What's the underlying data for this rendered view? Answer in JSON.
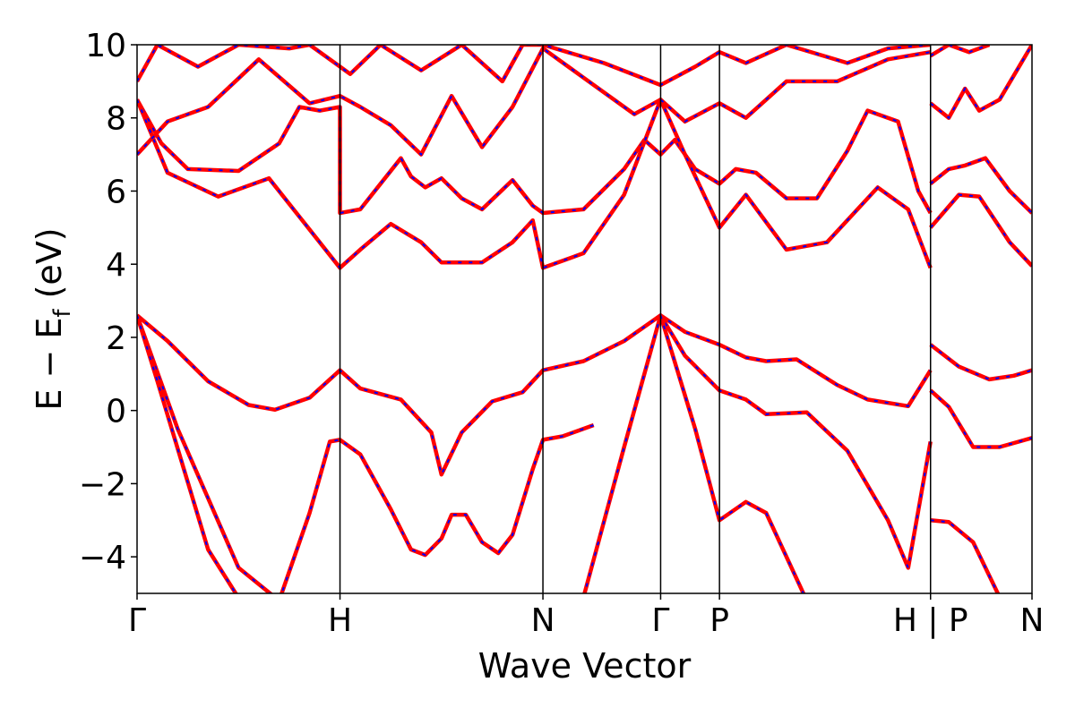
{
  "chart_data": {
    "type": "line",
    "title": "",
    "xlabel": "Wave Vector",
    "ylabel": "E − E",
    "ylabel_sub": "f",
    "ylabel_unit": " (eV)",
    "ylim": [
      -5,
      10
    ],
    "yticks": [
      -4,
      -2,
      0,
      2,
      4,
      6,
      8,
      10
    ],
    "ytick_labels": [
      "−4",
      "−2",
      "0",
      "2",
      "4",
      "6",
      "8",
      "10"
    ],
    "grid": false,
    "x_segments": [
      0,
      1.0,
      2.0,
      2.58,
      2.87,
      3.91,
      4.41
    ],
    "kpoint_labels": [
      {
        "x": 0,
        "label": "Γ"
      },
      {
        "x": 1.0,
        "label": "H"
      },
      {
        "x": 2.0,
        "label": "N"
      },
      {
        "x": 2.58,
        "label": "Γ"
      },
      {
        "x": 2.87,
        "label": "P"
      },
      {
        "x": 3.91,
        "label": "H | P"
      },
      {
        "x": 4.41,
        "label": "N"
      }
    ],
    "series_colors": {
      "reference": "#ff0000",
      "overlay": "#0000ff"
    },
    "series": [
      {
        "values": [
          [
            0,
            2.6
          ],
          [
            0.15,
            1.9
          ],
          [
            0.35,
            0.8
          ],
          [
            0.55,
            0.15
          ],
          [
            0.68,
            0.02
          ],
          [
            0.85,
            0.35
          ],
          [
            1.0,
            1.1
          ],
          [
            1.1,
            0.6
          ],
          [
            1.3,
            0.3
          ],
          [
            1.45,
            -0.6
          ],
          [
            1.5,
            -1.75
          ],
          [
            1.6,
            -0.6
          ],
          [
            1.75,
            0.25
          ],
          [
            1.9,
            0.5
          ],
          [
            2.0,
            1.1
          ],
          [
            2.2,
            1.35
          ],
          [
            2.4,
            1.9
          ],
          [
            2.58,
            2.6
          ],
          [
            2.7,
            2.15
          ],
          [
            2.87,
            1.8
          ],
          [
            3.0,
            1.45
          ],
          [
            3.1,
            1.35
          ],
          [
            3.25,
            1.4
          ],
          [
            3.45,
            0.7
          ],
          [
            3.6,
            0.3
          ],
          [
            3.8,
            0.12
          ],
          [
            3.91,
            1.1
          ]
        ]
      },
      {
        "values": [
          [
            0,
            2.6
          ],
          [
            0.2,
            -0.5
          ],
          [
            0.5,
            -4.3
          ],
          [
            0.7,
            -5.2
          ]
        ]
      },
      {
        "values": [
          [
            0,
            2.6
          ],
          [
            0.1,
            0.8
          ],
          [
            0.35,
            -3.8
          ],
          [
            0.6,
            -6.0
          ]
        ]
      },
      {
        "values": [
          [
            0.7,
            -5.2
          ],
          [
            0.85,
            -2.8
          ],
          [
            0.95,
            -0.85
          ],
          [
            1.0,
            -0.8
          ],
          [
            1.1,
            -1.2
          ],
          [
            1.25,
            -2.7
          ],
          [
            1.35,
            -3.8
          ],
          [
            1.42,
            -3.95
          ],
          [
            1.5,
            -3.5
          ],
          [
            1.55,
            -2.85
          ],
          [
            1.62,
            -2.85
          ],
          [
            1.7,
            -3.6
          ],
          [
            1.78,
            -3.9
          ],
          [
            1.85,
            -3.4
          ],
          [
            1.95,
            -1.6
          ],
          [
            2.0,
            -0.8
          ],
          [
            2.1,
            -0.7
          ],
          [
            2.25,
            -0.4
          ]
        ]
      },
      {
        "values": [
          [
            2.2,
            -5.1
          ],
          [
            2.4,
            -1.0
          ],
          [
            2.58,
            2.6
          ],
          [
            2.7,
            1.5
          ],
          [
            2.87,
            0.55
          ],
          [
            3.0,
            0.3
          ],
          [
            3.1,
            -0.1
          ],
          [
            3.3,
            -0.05
          ],
          [
            3.5,
            -1.1
          ],
          [
            3.7,
            -3.0
          ],
          [
            3.8,
            -4.3
          ],
          [
            3.91,
            -0.85
          ]
        ]
      },
      {
        "values": [
          [
            2.58,
            2.6
          ],
          [
            2.75,
            -0.5
          ],
          [
            2.87,
            -3.0
          ],
          [
            3.0,
            -2.5
          ],
          [
            3.1,
            -2.8
          ],
          [
            3.3,
            -5.2
          ]
        ]
      },
      {
        "values": [
          [
            0,
            8.5
          ],
          [
            0.12,
            7.3
          ],
          [
            0.25,
            6.6
          ],
          [
            0.5,
            6.55
          ],
          [
            0.7,
            7.3
          ],
          [
            0.8,
            8.3
          ],
          [
            0.9,
            8.2
          ],
          [
            1.0,
            8.3
          ],
          [
            1.0,
            5.4
          ],
          [
            1.1,
            5.5
          ],
          [
            1.2,
            6.2
          ],
          [
            1.3,
            6.9
          ],
          [
            1.35,
            6.4
          ],
          [
            1.42,
            6.1
          ],
          [
            1.5,
            6.35
          ],
          [
            1.6,
            5.8
          ],
          [
            1.7,
            5.5
          ],
          [
            1.85,
            6.3
          ],
          [
            1.95,
            5.6
          ],
          [
            2.0,
            5.4
          ],
          [
            2.2,
            5.5
          ],
          [
            2.4,
            6.6
          ],
          [
            2.5,
            7.4
          ],
          [
            2.58,
            7.0
          ],
          [
            2.65,
            7.4
          ],
          [
            2.75,
            6.6
          ],
          [
            2.87,
            6.2
          ],
          [
            2.95,
            6.6
          ],
          [
            3.05,
            6.5
          ],
          [
            3.2,
            5.8
          ],
          [
            3.35,
            5.8
          ],
          [
            3.5,
            7.1
          ],
          [
            3.6,
            8.2
          ],
          [
            3.75,
            7.9
          ],
          [
            3.85,
            6.0
          ],
          [
            3.91,
            5.4
          ]
        ]
      },
      {
        "values": [
          [
            0,
            8.5
          ],
          [
            0.15,
            6.5
          ],
          [
            0.4,
            5.85
          ],
          [
            0.65,
            6.35
          ],
          [
            0.8,
            5.3
          ],
          [
            1.0,
            3.9
          ],
          [
            1.1,
            4.4
          ],
          [
            1.25,
            5.1
          ],
          [
            1.4,
            4.6
          ],
          [
            1.5,
            4.05
          ],
          [
            1.7,
            4.05
          ],
          [
            1.85,
            4.6
          ],
          [
            1.95,
            5.2
          ],
          [
            2.0,
            3.9
          ],
          [
            2.2,
            4.3
          ],
          [
            2.4,
            5.9
          ],
          [
            2.58,
            8.5
          ],
          [
            2.7,
            7.0
          ],
          [
            2.87,
            5.0
          ],
          [
            3.0,
            5.9
          ],
          [
            3.2,
            4.4
          ],
          [
            3.4,
            4.6
          ],
          [
            3.65,
            6.1
          ],
          [
            3.8,
            5.5
          ],
          [
            3.91,
            3.9
          ]
        ]
      },
      {
        "values": [
          [
            0,
            7.0
          ],
          [
            0.15,
            7.9
          ],
          [
            0.35,
            8.3
          ],
          [
            0.6,
            9.6
          ],
          [
            0.85,
            8.4
          ],
          [
            1.0,
            8.6
          ],
          [
            1.1,
            8.3
          ],
          [
            1.25,
            7.8
          ],
          [
            1.4,
            7.0
          ],
          [
            1.55,
            8.6
          ],
          [
            1.7,
            7.2
          ],
          [
            1.85,
            8.3
          ],
          [
            2.0,
            9.9
          ],
          [
            2.2,
            9.1
          ],
          [
            2.45,
            8.1
          ],
          [
            2.58,
            8.5
          ],
          [
            2.7,
            7.9
          ],
          [
            2.87,
            8.4
          ],
          [
            3.0,
            8.0
          ],
          [
            3.2,
            9.0
          ],
          [
            3.45,
            9.0
          ],
          [
            3.7,
            9.6
          ],
          [
            3.91,
            9.8
          ]
        ]
      },
      {
        "values": [
          [
            0,
            9.0
          ],
          [
            0.1,
            10.0
          ],
          [
            0.3,
            9.4
          ],
          [
            0.5,
            10.0
          ],
          [
            0.75,
            9.9
          ],
          [
            0.85,
            10.0
          ],
          [
            1.05,
            9.2
          ],
          [
            1.2,
            10.0
          ],
          [
            1.4,
            9.3
          ],
          [
            1.6,
            10.0
          ],
          [
            1.8,
            9.0
          ],
          [
            1.9,
            10.0
          ],
          [
            2.0,
            10.0
          ],
          [
            2.3,
            9.5
          ],
          [
            2.58,
            8.9
          ],
          [
            2.75,
            9.4
          ],
          [
            2.87,
            9.8
          ],
          [
            3.0,
            9.5
          ],
          [
            3.2,
            10.0
          ],
          [
            3.5,
            9.5
          ],
          [
            3.7,
            9.9
          ],
          [
            3.91,
            10.0
          ]
        ]
      },
      {
        "values": [
          [
            3.91,
            1.8
          ],
          [
            4.05,
            1.2
          ],
          [
            4.2,
            0.85
          ],
          [
            4.32,
            0.95
          ],
          [
            4.41,
            1.1
          ]
        ]
      },
      {
        "values": [
          [
            3.91,
            0.55
          ],
          [
            4.0,
            0.1
          ],
          [
            4.12,
            -1.0
          ],
          [
            4.25,
            -1.0
          ],
          [
            4.41,
            -0.75
          ]
        ]
      },
      {
        "values": [
          [
            3.91,
            -3.0
          ],
          [
            4.0,
            -3.05
          ],
          [
            4.12,
            -3.6
          ],
          [
            4.25,
            -5.1
          ]
        ]
      },
      {
        "values": [
          [
            3.91,
            6.2
          ],
          [
            4.0,
            6.6
          ],
          [
            4.08,
            6.7
          ],
          [
            4.18,
            6.9
          ],
          [
            4.3,
            6.0
          ],
          [
            4.41,
            5.4
          ]
        ]
      },
      {
        "values": [
          [
            3.91,
            5.0
          ],
          [
            4.05,
            5.9
          ],
          [
            4.15,
            5.85
          ],
          [
            4.3,
            4.6
          ],
          [
            4.41,
            3.95
          ]
        ]
      },
      {
        "values": [
          [
            3.91,
            8.4
          ],
          [
            4.0,
            8.0
          ],
          [
            4.08,
            8.8
          ],
          [
            4.15,
            8.2
          ],
          [
            4.25,
            8.5
          ],
          [
            4.41,
            10.0
          ]
        ]
      },
      {
        "values": [
          [
            3.91,
            9.7
          ],
          [
            4.0,
            10.0
          ],
          [
            4.1,
            9.8
          ],
          [
            4.2,
            10.0
          ]
        ]
      }
    ]
  }
}
